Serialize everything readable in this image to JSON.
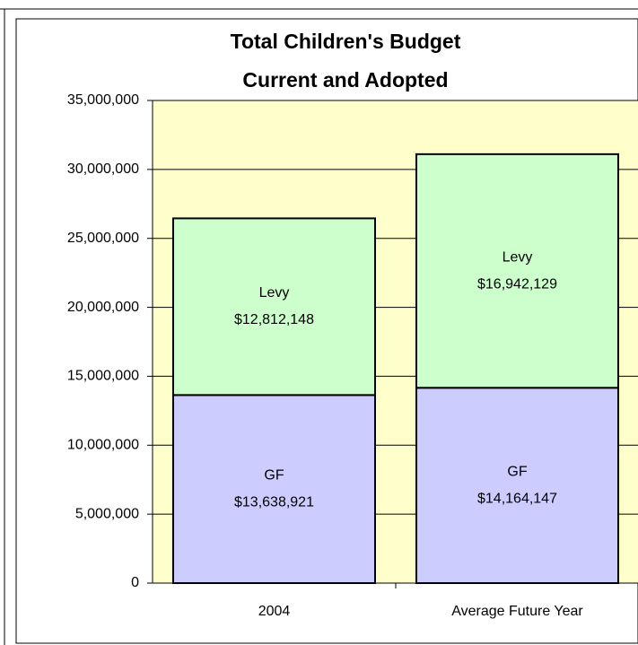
{
  "chart_data": {
    "type": "stacked_bar",
    "title": "Total Children's Budget",
    "subtitle": "Current and Adopted",
    "categories": [
      "2004",
      "Average Future Year"
    ],
    "series": [
      {
        "name": "GF",
        "color": "#ccccff",
        "values": [
          13638921,
          14164147
        ],
        "value_labels": [
          "$13,638,921",
          "$14,164,147"
        ]
      },
      {
        "name": "Levy",
        "color": "#ccffcc",
        "values": [
          12812148,
          16942129
        ],
        "value_labels": [
          "$12,812,148",
          "$16,942,129"
        ]
      }
    ],
    "ylim": [
      0,
      35000000
    ],
    "yticks": [
      0,
      {
        "value": 5000000,
        "label": "5,000,000"
      },
      {
        "value": 10000000,
        "label": "10,000,000"
      },
      {
        "value": 15000000,
        "label": "15,000,000"
      },
      {
        "value": 20000000,
        "label": "20,000,000"
      },
      {
        "value": 25000000,
        "label": "25,000,000"
      },
      {
        "value": 30000000,
        "label": "30,000,000"
      },
      {
        "value": 35000000,
        "label": "35,000,000"
      }
    ],
    "grid": true,
    "plot_background": "#ffffcc"
  }
}
